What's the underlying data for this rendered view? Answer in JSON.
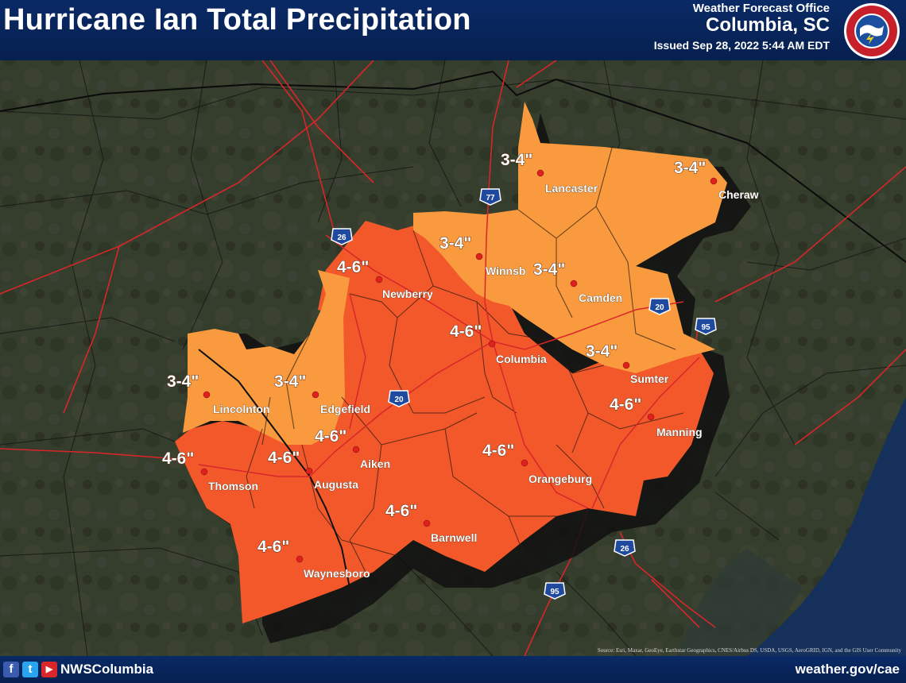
{
  "header": {
    "title": "Hurricane Ian Total Precipitation",
    "office_line1": "Weather Forecast Office",
    "office_line2": "Columbia, SC",
    "issued": "Issued Sep 28, 2022 5:44 AM EDT"
  },
  "footer": {
    "handle": "NWSColumbia",
    "website": "weather.gov/cae",
    "social_icons": [
      "facebook-icon",
      "twitter-icon",
      "youtube-icon"
    ]
  },
  "attribution": "Source: Esri, Maxar, GeoEye, Earthstar Geographics, CNES/Airbus DS, USDA, USGS, AeroGRID, IGN, and the GIS User Community",
  "colors": {
    "band_3_4": "#f99a3e",
    "band_4_6": "#f2582a",
    "header_bg": "#0a2a66",
    "roads": "#d8262a"
  },
  "legend_bands": [
    "3-4\"",
    "4-6\""
  ],
  "amount_labels": {
    "lancaster": "3-4\"",
    "cheraw": "3-4\"",
    "winnsboro": "3-4\"",
    "camden": "3-4\"",
    "sumter": "3-4\"",
    "lincolnton": "3-4\"",
    "edgefield": "3-4\"",
    "newberry": "4-6\"",
    "columbia": "4-6\"",
    "manning": "4-6\"",
    "aiken": "4-6\"",
    "augusta": "4-6\"",
    "thomson": "4-6\"",
    "orangeburg": "4-6\"",
    "barnwell": "4-6\"",
    "waynesboro": "4-6\""
  },
  "cities": {
    "lancaster": "Lancaster",
    "cheraw": "Cheraw",
    "winnsboro": "Winnsb",
    "camden": "Camden",
    "sumter": "Sumter",
    "lincolnton": "Lincolnton",
    "edgefield": "Edgefield",
    "newberry": "Newberry",
    "columbia": "Columbia",
    "manning": "Manning",
    "aiken": "Aiken",
    "augusta": "Augusta",
    "thomson": "Thomson",
    "orangeburg": "Orangeburg",
    "barnwell": "Barnwell",
    "waynesboro": "Waynesboro"
  },
  "interstates": {
    "i77": "77",
    "i26_north": "26",
    "i20_east": "20",
    "i95_north": "95",
    "i20_west": "20",
    "i26_south": "26",
    "i95_south": "95"
  }
}
